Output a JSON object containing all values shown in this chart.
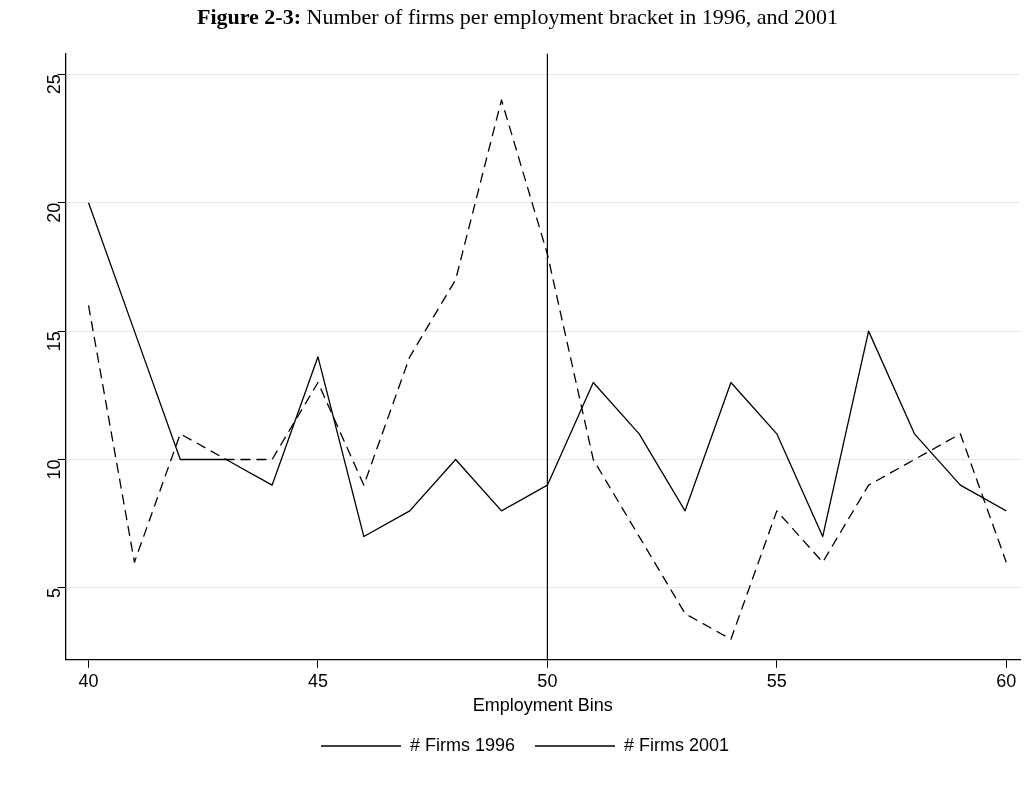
{
  "chart_data": {
    "type": "line",
    "title": "Figure 2-3: Number of firms per employment bracket in 1996, and 2001",
    "xlabel": "Employment Bins",
    "x": [
      40,
      41,
      42,
      43,
      44,
      45,
      46,
      47,
      48,
      49,
      50,
      51,
      52,
      53,
      54,
      55,
      56,
      57,
      58,
      59,
      60
    ],
    "series": [
      {
        "name": "# Firms 1996",
        "color": "#000000",
        "line_style": "solid",
        "values": [
          20,
          15,
          10,
          10,
          9,
          14,
          7,
          8,
          10,
          8,
          9,
          13,
          11,
          8,
          13,
          11,
          7,
          15,
          11,
          9,
          8
        ]
      },
      {
        "name": "# Firms 2001",
        "color": "#000000",
        "line_style": "dashed",
        "values": [
          16,
          6,
          11,
          10,
          10,
          13,
          9,
          14,
          17,
          24,
          18,
          10,
          7,
          4,
          3,
          8,
          6,
          9,
          10,
          11,
          6
        ]
      }
    ],
    "xlim": [
      39.5,
      60.3
    ],
    "xticks": [
      40,
      45,
      50,
      55,
      60
    ],
    "ylim": [
      2.2,
      25.8
    ],
    "yticks": [
      5,
      10,
      15,
      20,
      25
    ],
    "grid": "y",
    "legend": "bottom",
    "marker": "none",
    "ref_lines": [
      {
        "axis": "x",
        "value": 50,
        "color": "#000000"
      }
    ]
  }
}
